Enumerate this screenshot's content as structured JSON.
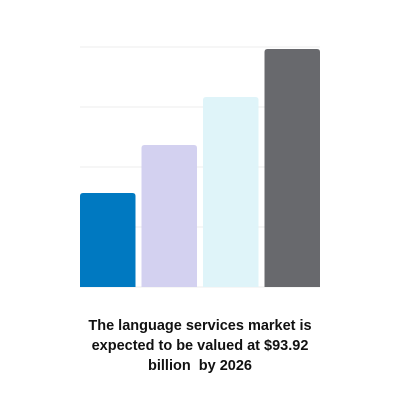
{
  "chart_data": {
    "type": "bar",
    "categories": [
      "",
      "",
      "",
      ""
    ],
    "values": [
      47,
      71,
      95,
      119
    ],
    "colors": [
      "#0079c1",
      "#d3d1f0",
      "#dff4f9",
      "#68696d"
    ],
    "ylim": [
      0,
      120
    ],
    "grid": true,
    "legend": "none",
    "title": "",
    "xlabel": "",
    "ylabel": ""
  },
  "caption": {
    "lines": [
      "The language services market is",
      "expected to be valued at $93.92",
      "billion  by 2026"
    ]
  }
}
